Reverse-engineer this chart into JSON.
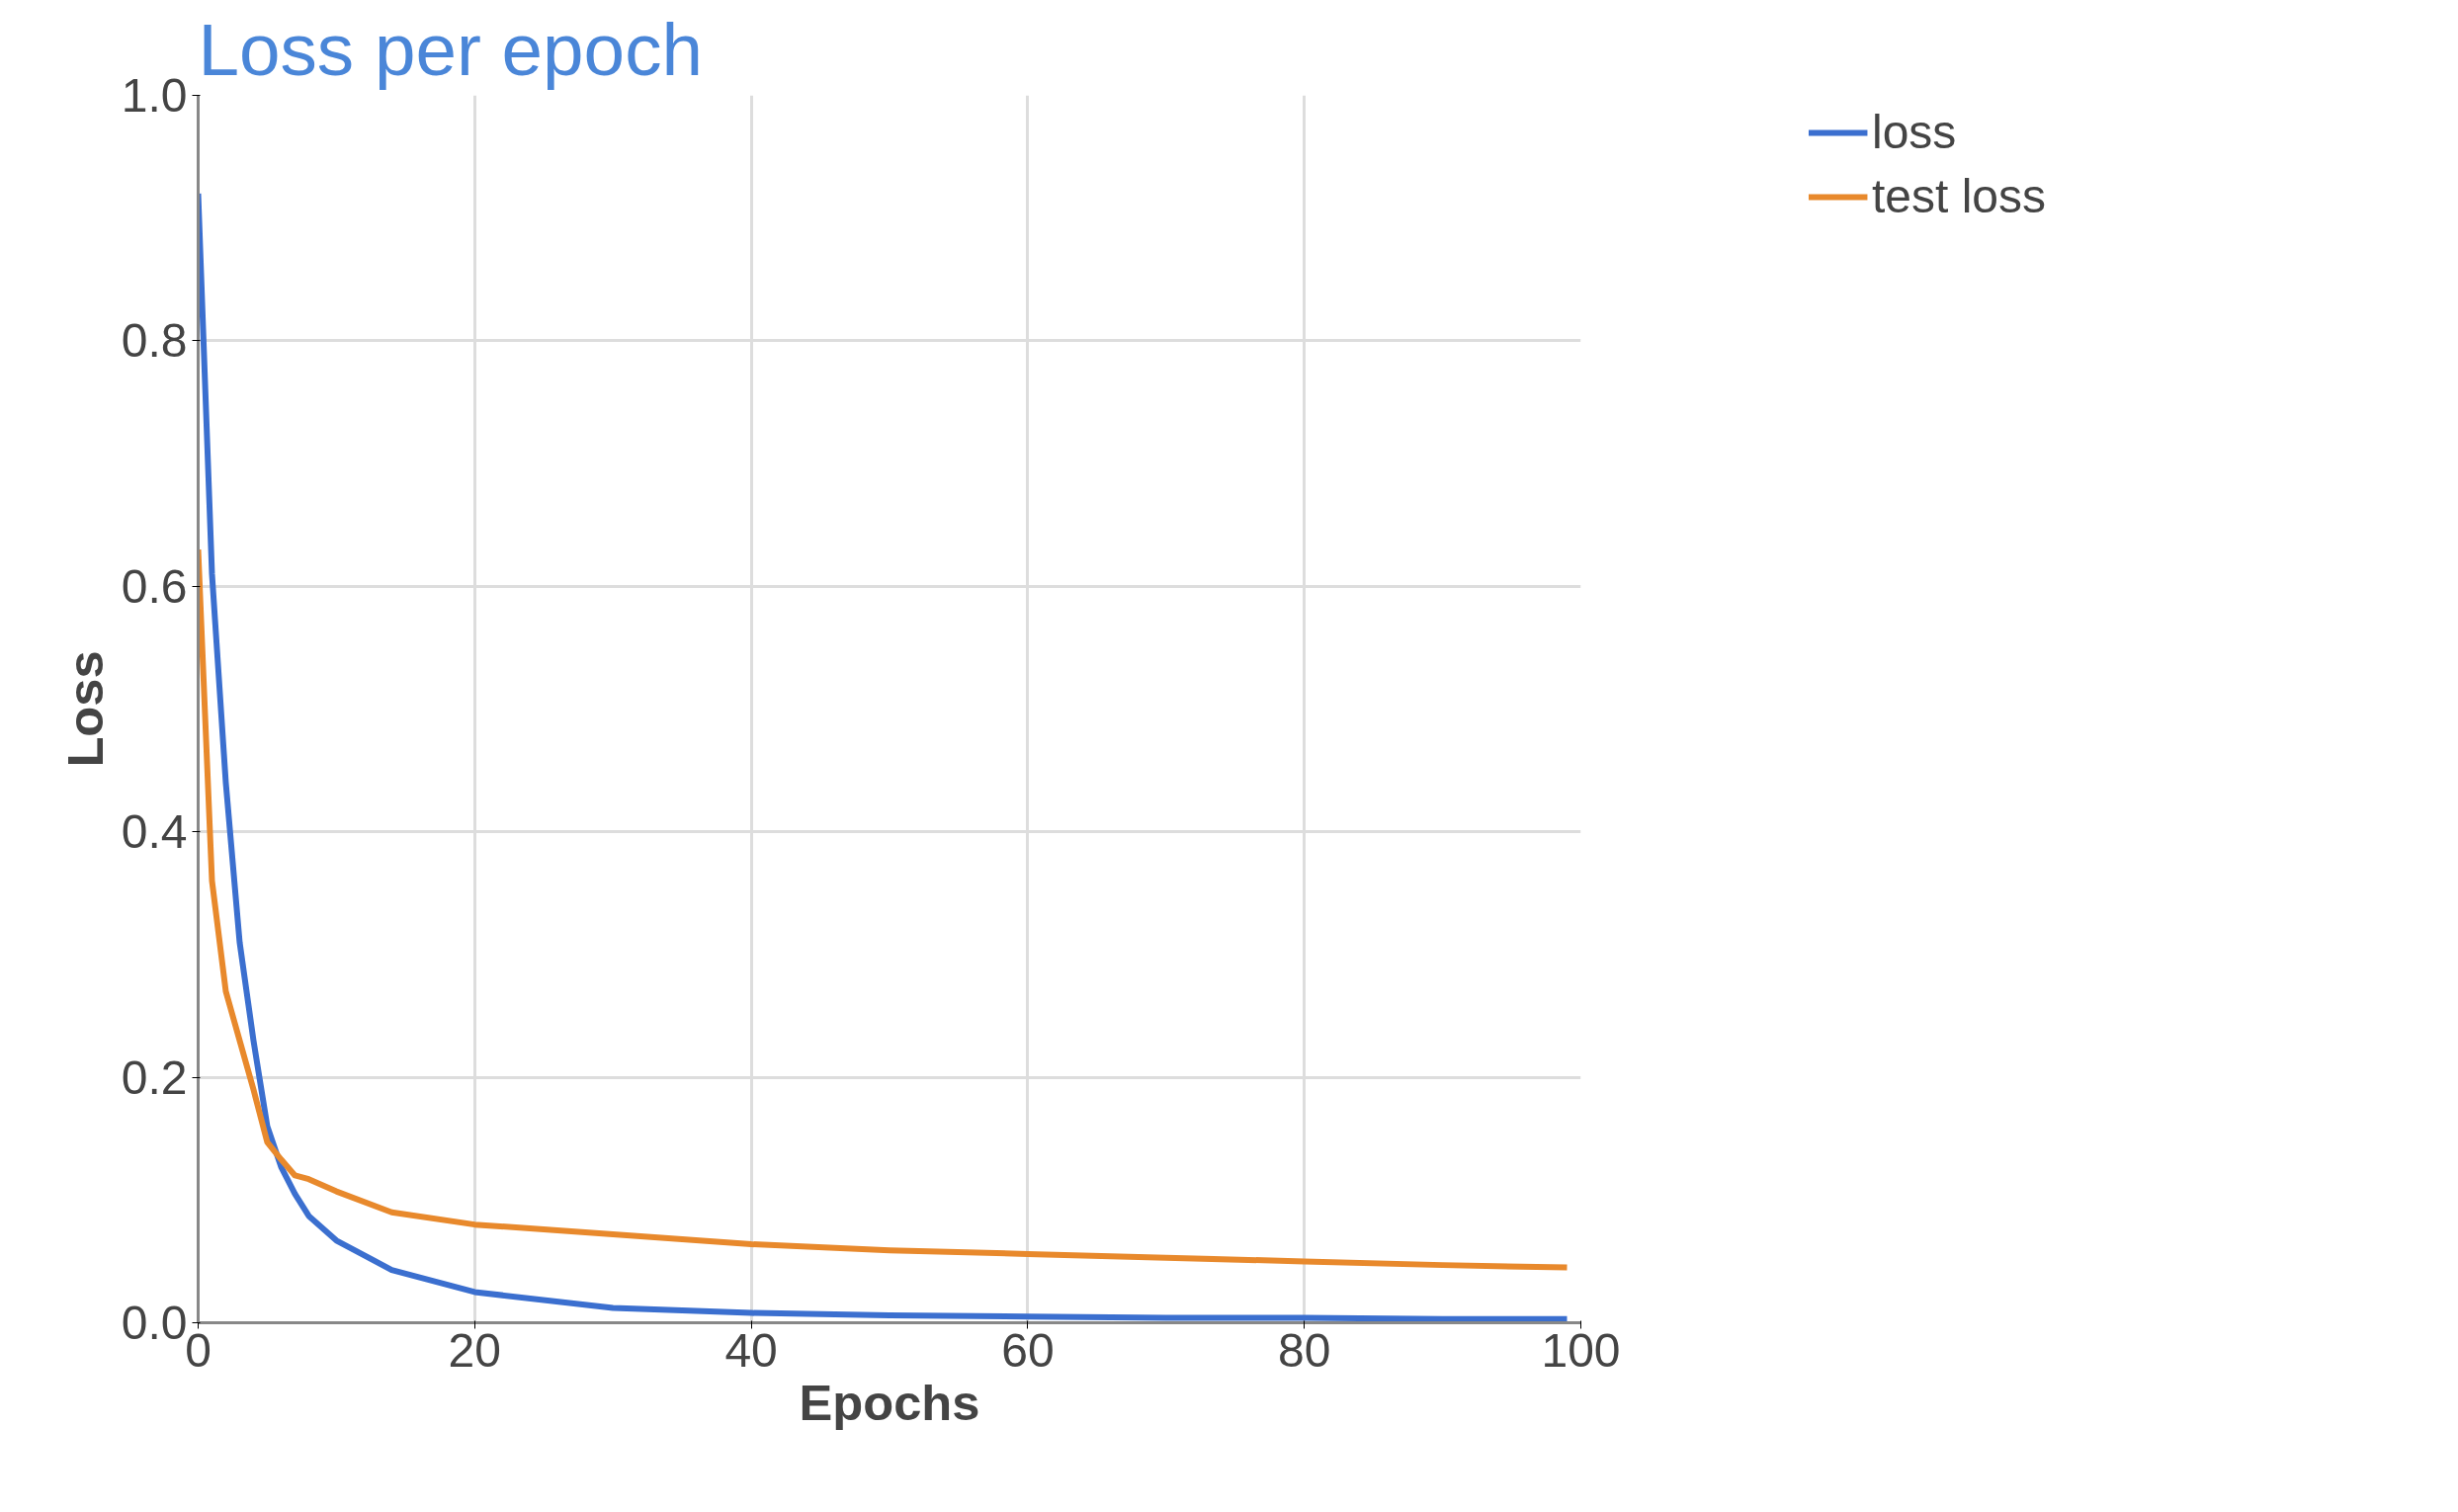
{
  "chart_data": {
    "type": "line",
    "title": "Loss per epoch",
    "xlabel": "Epochs",
    "ylabel": "Loss",
    "xlim": [
      0,
      100
    ],
    "ylim": [
      0,
      1
    ],
    "xticks": [
      0,
      20,
      40,
      60,
      80,
      100
    ],
    "yticks": [
      {
        "value": 0,
        "label": "0.0"
      },
      0.2,
      0.4,
      0.6,
      0.8,
      {
        "value": 1,
        "label": "1.0"
      }
    ],
    "grid": true,
    "legend": "top right",
    "marker": "none",
    "line_style": "solid",
    "x": [
      0,
      1,
      2,
      3,
      4,
      5,
      6,
      7,
      8,
      10,
      14,
      20,
      30,
      40,
      50,
      60,
      70,
      80,
      90,
      99
    ],
    "series": [
      {
        "name": "loss",
        "color": "#3b6fcf",
        "values": [
          0.92,
          0.61,
          0.44,
          0.31,
          0.23,
          0.16,
          0.127,
          0.105,
          0.087,
          0.067,
          0.043,
          0.025,
          0.012,
          0.008,
          0.006,
          0.005,
          0.004,
          0.004,
          0.003,
          0.003
        ]
      },
      {
        "name": "test loss",
        "color": "#e8892c",
        "values": [
          0.63,
          0.36,
          0.27,
          0.23,
          0.19,
          0.147,
          0.133,
          0.12,
          0.117,
          0.107,
          0.09,
          0.08,
          0.072,
          0.064,
          0.059,
          0.056,
          0.053,
          0.05,
          0.047,
          0.045
        ]
      }
    ]
  }
}
